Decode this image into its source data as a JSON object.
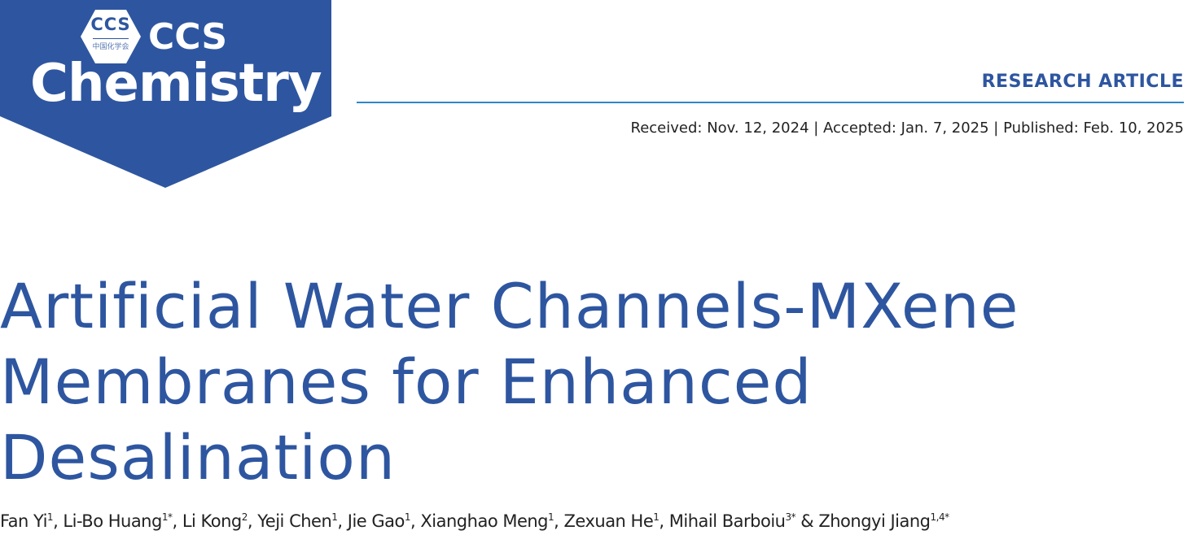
{
  "journal": {
    "logo_badge": "CCS",
    "logo_badge_subtitle": "中国化学会",
    "name_line1": "CCS",
    "name_line2": "Chemistry",
    "brand_color": "#2e56a0"
  },
  "article_type": "RESEARCH ARTICLE",
  "dates": "Received: Nov. 12, 2024 | Accepted: Jan. 7, 2025 | Published: Feb. 10, 2025",
  "title_lines": [
    "Artificial Water Channels-MXene",
    "Membranes for Enhanced",
    "Desalination"
  ],
  "authors": [
    {
      "name": "Fan Yi",
      "sup": "1",
      "sep": ", "
    },
    {
      "name": "Li-Bo Huang",
      "sup": "1*",
      "sep": ", "
    },
    {
      "name": "Li Kong",
      "sup": "2",
      "sep": ", "
    },
    {
      "name": "Yeji Chen",
      "sup": "1",
      "sep": ", "
    },
    {
      "name": "Jie Gao",
      "sup": "1",
      "sep": ", "
    },
    {
      "name": "Xianghao Meng",
      "sup": "1",
      "sep": ", "
    },
    {
      "name": "Zexuan He",
      "sup": "1",
      "sep": ", "
    },
    {
      "name": "Mihail Barboiu",
      "sup": "3*",
      "sep": " & "
    },
    {
      "name": "Zhongyi Jiang",
      "sup": "1,4*",
      "sep": ""
    }
  ]
}
